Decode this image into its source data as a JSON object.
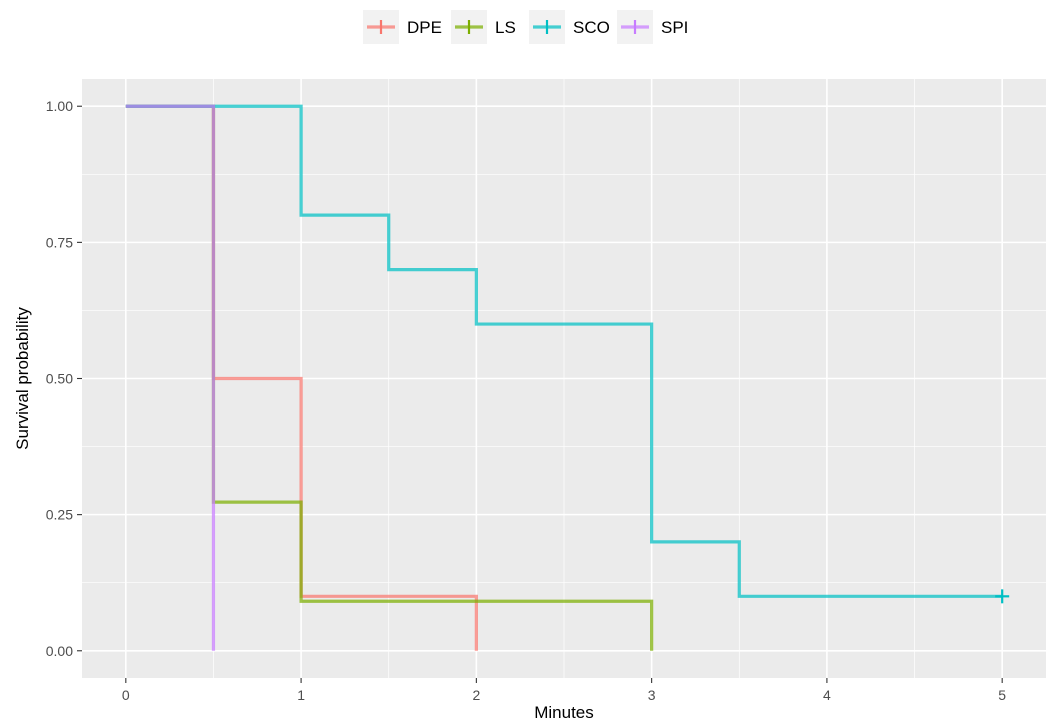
{
  "chart_data": {
    "type": "line",
    "subtype": "step",
    "title": "",
    "xlabel": "Minutes",
    "ylabel": "Survival probability",
    "xlim": [
      -0.25,
      5.25
    ],
    "ylim": [
      -0.05,
      1.05
    ],
    "x_ticks": [
      0,
      1,
      2,
      3,
      4,
      5
    ],
    "x_tick_labels": [
      "0",
      "1",
      "2",
      "3",
      "4",
      "5"
    ],
    "y_ticks": [
      0,
      0.25,
      0.5,
      0.75,
      1.0
    ],
    "y_tick_labels": [
      "0.00",
      "0.25",
      "0.50",
      "0.75",
      "1.00"
    ],
    "grid": true,
    "background": "#ebebeb",
    "legend_position": "top",
    "series": [
      {
        "name": "DPE",
        "color": "#f8766d",
        "points": [
          [
            0,
            1.0
          ],
          [
            0.5,
            0.5
          ],
          [
            1,
            0.1
          ],
          [
            2,
            0.0
          ]
        ],
        "end_x": 2,
        "censor_marks": []
      },
      {
        "name": "LS",
        "color": "#7cae00",
        "points": [
          [
            0,
            1.0
          ],
          [
            0.5,
            0.273
          ],
          [
            1,
            0.091
          ],
          [
            3,
            0.0
          ]
        ],
        "end_x": 3,
        "censor_marks": []
      },
      {
        "name": "SCO",
        "color": "#00bfc4",
        "points": [
          [
            0,
            1.0
          ],
          [
            1,
            0.8
          ],
          [
            1.5,
            0.7
          ],
          [
            2,
            0.6
          ],
          [
            3,
            0.2
          ],
          [
            3.5,
            0.1
          ]
        ],
        "end_x": 5,
        "censor_marks": [
          [
            5,
            0.1
          ]
        ]
      },
      {
        "name": "SPI",
        "color": "#c77cff",
        "points": [
          [
            0,
            1.0
          ],
          [
            0.5,
            0.0
          ]
        ],
        "end_x": 0.5,
        "censor_marks": []
      }
    ]
  }
}
